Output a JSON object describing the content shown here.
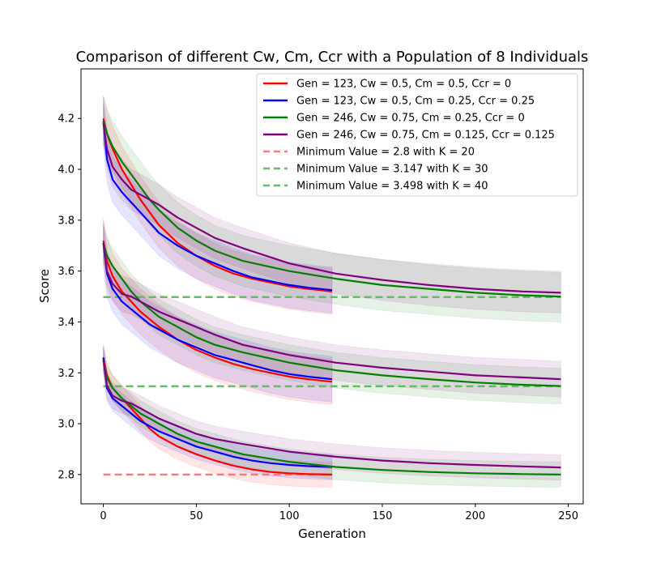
{
  "chart_data": {
    "type": "line",
    "title": "Comparison of different Cw, Cm, Ccr with a Population of 8 Individuals",
    "xlabel": "Generation",
    "ylabel": "Score",
    "xlim": [
      -12,
      258
    ],
    "ylim": [
      2.685,
      4.395
    ],
    "xticks": [
      0,
      50,
      100,
      150,
      200,
      250
    ],
    "yticks": [
      2.8,
      3.0,
      3.2,
      3.4,
      3.6,
      3.8,
      4.0,
      4.2
    ],
    "legend_position": "top-right",
    "grid": false,
    "series": [
      {
        "name": "Gen = 123, Cw = 0.5, Cm = 0.5, Ccr = 0",
        "color": "#ff0000",
        "band_opacity": 0.1,
        "groups": [
          {
            "x": [
              0,
              2,
              5,
              10,
              15,
              20,
              25,
              30,
              40,
              50,
              60,
              70,
              80,
              90,
              100,
              110,
              123
            ],
            "y": [
              4.2,
              4.14,
              4.08,
              4.0,
              3.94,
              3.88,
              3.83,
              3.78,
              3.71,
              3.66,
              3.62,
              3.59,
              3.57,
              3.555,
              3.54,
              3.53,
              3.52
            ],
            "band": 0.09
          },
          {
            "x": [
              0,
              2,
              5,
              10,
              15,
              20,
              25,
              30,
              40,
              50,
              60,
              70,
              80,
              90,
              100,
              110,
              123
            ],
            "y": [
              3.72,
              3.64,
              3.58,
              3.52,
              3.48,
              3.44,
              3.41,
              3.38,
              3.33,
              3.29,
              3.26,
              3.235,
              3.215,
              3.2,
              3.185,
              3.175,
              3.165
            ],
            "band": 0.09
          },
          {
            "x": [
              0,
              2,
              5,
              10,
              15,
              20,
              25,
              30,
              40,
              50,
              60,
              70,
              80,
              90,
              100,
              110,
              123
            ],
            "y": [
              3.26,
              3.19,
              3.14,
              3.1,
              3.06,
              3.02,
              2.98,
              2.95,
              2.91,
              2.88,
              2.855,
              2.835,
              2.82,
              2.81,
              2.805,
              2.802,
              2.8
            ],
            "band": 0.05
          }
        ]
      },
      {
        "name": "Gen = 123, Cw = 0.5, Cm = 0.25, Ccr = 0.25",
        "color": "#0000ff",
        "band_opacity": 0.1,
        "groups": [
          {
            "x": [
              0,
              2,
              5,
              10,
              15,
              20,
              25,
              30,
              40,
              50,
              60,
              70,
              80,
              90,
              100,
              110,
              123
            ],
            "y": [
              4.19,
              4.04,
              3.96,
              3.91,
              3.87,
              3.83,
              3.79,
              3.75,
              3.7,
              3.66,
              3.63,
              3.6,
              3.575,
              3.56,
              3.545,
              3.535,
              3.525
            ],
            "band": 0.09
          },
          {
            "x": [
              0,
              2,
              5,
              10,
              15,
              20,
              25,
              30,
              40,
              50,
              60,
              70,
              80,
              90,
              100,
              110,
              123
            ],
            "y": [
              3.71,
              3.59,
              3.53,
              3.48,
              3.45,
              3.42,
              3.39,
              3.37,
              3.33,
              3.3,
              3.27,
              3.25,
              3.23,
              3.21,
              3.195,
              3.185,
              3.175
            ],
            "band": 0.09
          },
          {
            "x": [
              0,
              2,
              5,
              10,
              15,
              20,
              25,
              30,
              40,
              50,
              60,
              70,
              80,
              90,
              100,
              110,
              123
            ],
            "y": [
              3.26,
              3.14,
              3.1,
              3.07,
              3.04,
              3.01,
              2.99,
              2.97,
              2.94,
              2.91,
              2.89,
              2.87,
              2.855,
              2.845,
              2.838,
              2.833,
              2.83
            ],
            "band": 0.05
          }
        ]
      },
      {
        "name": "Gen = 246, Cw = 0.75, Cm = 0.25, Ccr = 0",
        "color": "#008000",
        "band_opacity": 0.1,
        "groups": [
          {
            "x": [
              0,
              2,
              5,
              10,
              15,
              20,
              25,
              30,
              40,
              50,
              60,
              75,
              100,
              125,
              150,
              175,
              200,
              225,
              246
            ],
            "y": [
              4.19,
              4.14,
              4.09,
              4.03,
              3.98,
              3.93,
              3.88,
              3.84,
              3.77,
              3.72,
              3.68,
              3.64,
              3.6,
              3.57,
              3.545,
              3.53,
              3.515,
              3.505,
              3.5
            ],
            "band": 0.1
          },
          {
            "x": [
              0,
              2,
              5,
              10,
              15,
              20,
              25,
              30,
              40,
              50,
              60,
              75,
              100,
              125,
              150,
              175,
              200,
              225,
              246
            ],
            "y": [
              3.71,
              3.66,
              3.62,
              3.57,
              3.52,
              3.48,
              3.45,
              3.42,
              3.38,
              3.34,
              3.31,
              3.28,
              3.24,
              3.21,
              3.19,
              3.175,
              3.162,
              3.153,
              3.148
            ],
            "band": 0.07
          },
          {
            "x": [
              0,
              2,
              5,
              10,
              15,
              20,
              25,
              30,
              40,
              50,
              60,
              75,
              100,
              125,
              150,
              175,
              200,
              225,
              246
            ],
            "y": [
              3.25,
              3.18,
              3.14,
              3.1,
              3.07,
              3.04,
              3.02,
              3.0,
              2.96,
              2.93,
              2.91,
              2.88,
              2.85,
              2.83,
              2.818,
              2.81,
              2.805,
              2.802,
              2.8
            ],
            "band": 0.05
          }
        ]
      },
      {
        "name": "Gen = 246, Cw = 0.75, Cm = 0.125, Ccr = 0.125",
        "color": "#800080",
        "band_opacity": 0.1,
        "groups": [
          {
            "x": [
              0,
              2,
              5,
              10,
              15,
              20,
              25,
              30,
              40,
              50,
              60,
              75,
              100,
              125,
              150,
              175,
              200,
              225,
              246
            ],
            "y": [
              4.18,
              4.08,
              4.01,
              3.96,
              3.92,
              3.9,
              3.88,
              3.86,
              3.81,
              3.77,
              3.73,
              3.69,
              3.63,
              3.59,
              3.565,
              3.545,
              3.53,
              3.52,
              3.515
            ],
            "band": 0.08
          },
          {
            "x": [
              0,
              2,
              5,
              10,
              15,
              20,
              25,
              30,
              40,
              50,
              60,
              75,
              100,
              125,
              150,
              175,
              200,
              225,
              246
            ],
            "y": [
              3.71,
              3.6,
              3.55,
              3.51,
              3.5,
              3.48,
              3.46,
              3.44,
              3.41,
              3.38,
              3.35,
              3.31,
              3.27,
              3.24,
              3.22,
              3.205,
              3.19,
              3.182,
              3.175
            ],
            "band": 0.07
          },
          {
            "x": [
              0,
              2,
              5,
              10,
              15,
              20,
              25,
              30,
              40,
              50,
              60,
              75,
              100,
              125,
              150,
              175,
              200,
              225,
              246
            ],
            "y": [
              3.25,
              3.15,
              3.11,
              3.09,
              3.08,
              3.06,
              3.04,
              3.02,
              2.99,
              2.96,
              2.94,
              2.92,
              2.89,
              2.87,
              2.855,
              2.845,
              2.838,
              2.832,
              2.828
            ],
            "band": 0.05
          }
        ]
      }
    ],
    "reference_lines": [
      {
        "name": "Minimum Value = 2.8 with K = 20",
        "color": "#f08080",
        "y": 2.8,
        "x": [
          0,
          123
        ]
      },
      {
        "name": "Minimum Value = 3.147 with K = 30",
        "color": "#66bb66",
        "y": 3.147,
        "x": [
          0,
          246
        ]
      },
      {
        "name": "Minimum Value = 3.498 with K = 40",
        "color": "#66bb66",
        "y": 3.498,
        "x": [
          0,
          246
        ]
      }
    ]
  }
}
